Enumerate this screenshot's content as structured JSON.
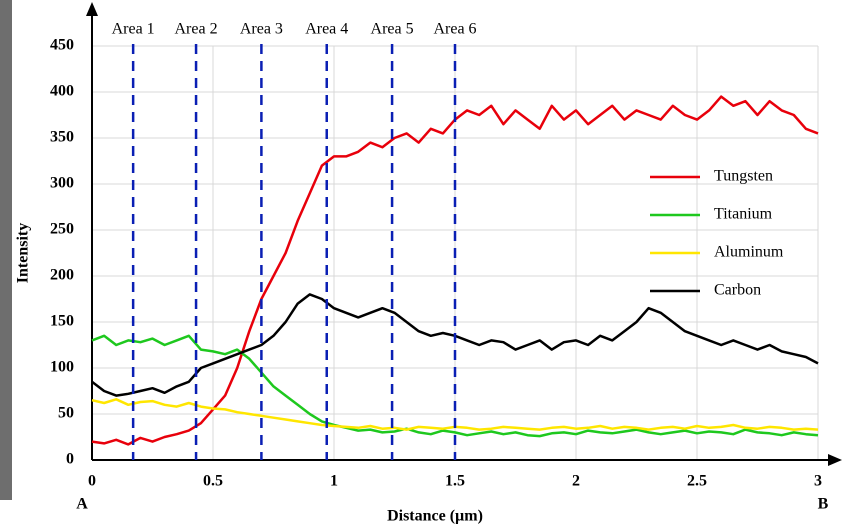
{
  "chart_data": {
    "type": "line",
    "x_label": "Distance (µm)",
    "y_label": "Intensity",
    "xlim": [
      0,
      3
    ],
    "ylim": [
      0,
      450
    ],
    "xticks": [
      0,
      0.5,
      1,
      1.5,
      2,
      2.5,
      3
    ],
    "yticks": [
      0,
      50,
      100,
      150,
      200,
      250,
      300,
      350,
      400,
      450
    ],
    "grid": true,
    "legend": "right",
    "endpoints": [
      "A",
      "B"
    ],
    "areas": [
      {
        "label": "Area 1",
        "x": 0.17
      },
      {
        "label": "Area 2",
        "x": 0.43
      },
      {
        "label": "Area 3",
        "x": 0.7
      },
      {
        "label": "Area 4",
        "x": 0.97
      },
      {
        "label": "Area 5",
        "x": 1.24
      },
      {
        "label": "Area 6",
        "x": 1.5
      }
    ],
    "area_color": "#0a1fb4",
    "x": [
      0,
      0.05,
      0.1,
      0.15,
      0.2,
      0.25,
      0.3,
      0.35,
      0.4,
      0.45,
      0.5,
      0.55,
      0.6,
      0.65,
      0.7,
      0.75,
      0.8,
      0.85,
      0.9,
      0.95,
      1,
      1.05,
      1.1,
      1.15,
      1.2,
      1.25,
      1.3,
      1.35,
      1.4,
      1.45,
      1.5,
      1.55,
      1.6,
      1.65,
      1.7,
      1.75,
      1.8,
      1.85,
      1.9,
      1.95,
      2,
      2.05,
      2.1,
      2.15,
      2.2,
      2.25,
      2.3,
      2.35,
      2.4,
      2.45,
      2.5,
      2.55,
      2.6,
      2.65,
      2.7,
      2.75,
      2.8,
      2.85,
      2.9,
      2.95,
      3
    ],
    "series": [
      {
        "name": "Tungsten",
        "color": "#e8000b",
        "values": [
          20,
          18,
          22,
          17,
          24,
          20,
          25,
          28,
          32,
          40,
          55,
          70,
          100,
          140,
          175,
          200,
          225,
          260,
          290,
          320,
          330,
          330,
          335,
          345,
          340,
          350,
          355,
          345,
          360,
          355,
          370,
          380,
          375,
          385,
          365,
          380,
          370,
          360,
          385,
          370,
          380,
          365,
          375,
          385,
          370,
          380,
          375,
          370,
          385,
          375,
          370,
          380,
          395,
          385,
          390,
          375,
          390,
          380,
          375,
          360,
          355
        ]
      },
      {
        "name": "Titanium",
        "color": "#1ec81e",
        "values": [
          130,
          135,
          125,
          130,
          128,
          132,
          125,
          130,
          135,
          120,
          118,
          115,
          120,
          110,
          95,
          80,
          70,
          60,
          50,
          42,
          38,
          35,
          32,
          33,
          30,
          31,
          34,
          30,
          28,
          32,
          30,
          27,
          29,
          31,
          28,
          30,
          27,
          26,
          29,
          30,
          28,
          32,
          30,
          29,
          31,
          33,
          30,
          28,
          30,
          32,
          29,
          31,
          30,
          28,
          33,
          30,
          29,
          27,
          30,
          28,
          27
        ]
      },
      {
        "name": "Aluminum",
        "color": "#ffe600",
        "values": [
          65,
          62,
          66,
          60,
          63,
          64,
          60,
          58,
          62,
          58,
          56,
          55,
          52,
          50,
          48,
          46,
          44,
          42,
          40,
          38,
          37,
          36,
          35,
          37,
          34,
          35,
          33,
          36,
          35,
          34,
          36,
          35,
          33,
          34,
          36,
          35,
          34,
          33,
          35,
          36,
          34,
          35,
          37,
          34,
          36,
          35,
          33,
          35,
          36,
          34,
          37,
          35,
          36,
          38,
          35,
          34,
          36,
          35,
          33,
          34,
          33
        ]
      },
      {
        "name": "Carbon",
        "color": "#000000",
        "values": [
          85,
          75,
          70,
          72,
          75,
          78,
          73,
          80,
          85,
          100,
          105,
          110,
          115,
          120,
          125,
          135,
          150,
          170,
          180,
          175,
          165,
          160,
          155,
          160,
          165,
          160,
          150,
          140,
          135,
          138,
          135,
          130,
          125,
          130,
          128,
          120,
          125,
          130,
          120,
          128,
          130,
          125,
          135,
          130,
          140,
          150,
          165,
          160,
          150,
          140,
          135,
          130,
          125,
          130,
          125,
          120,
          125,
          118,
          115,
          112,
          105
        ]
      }
    ]
  }
}
